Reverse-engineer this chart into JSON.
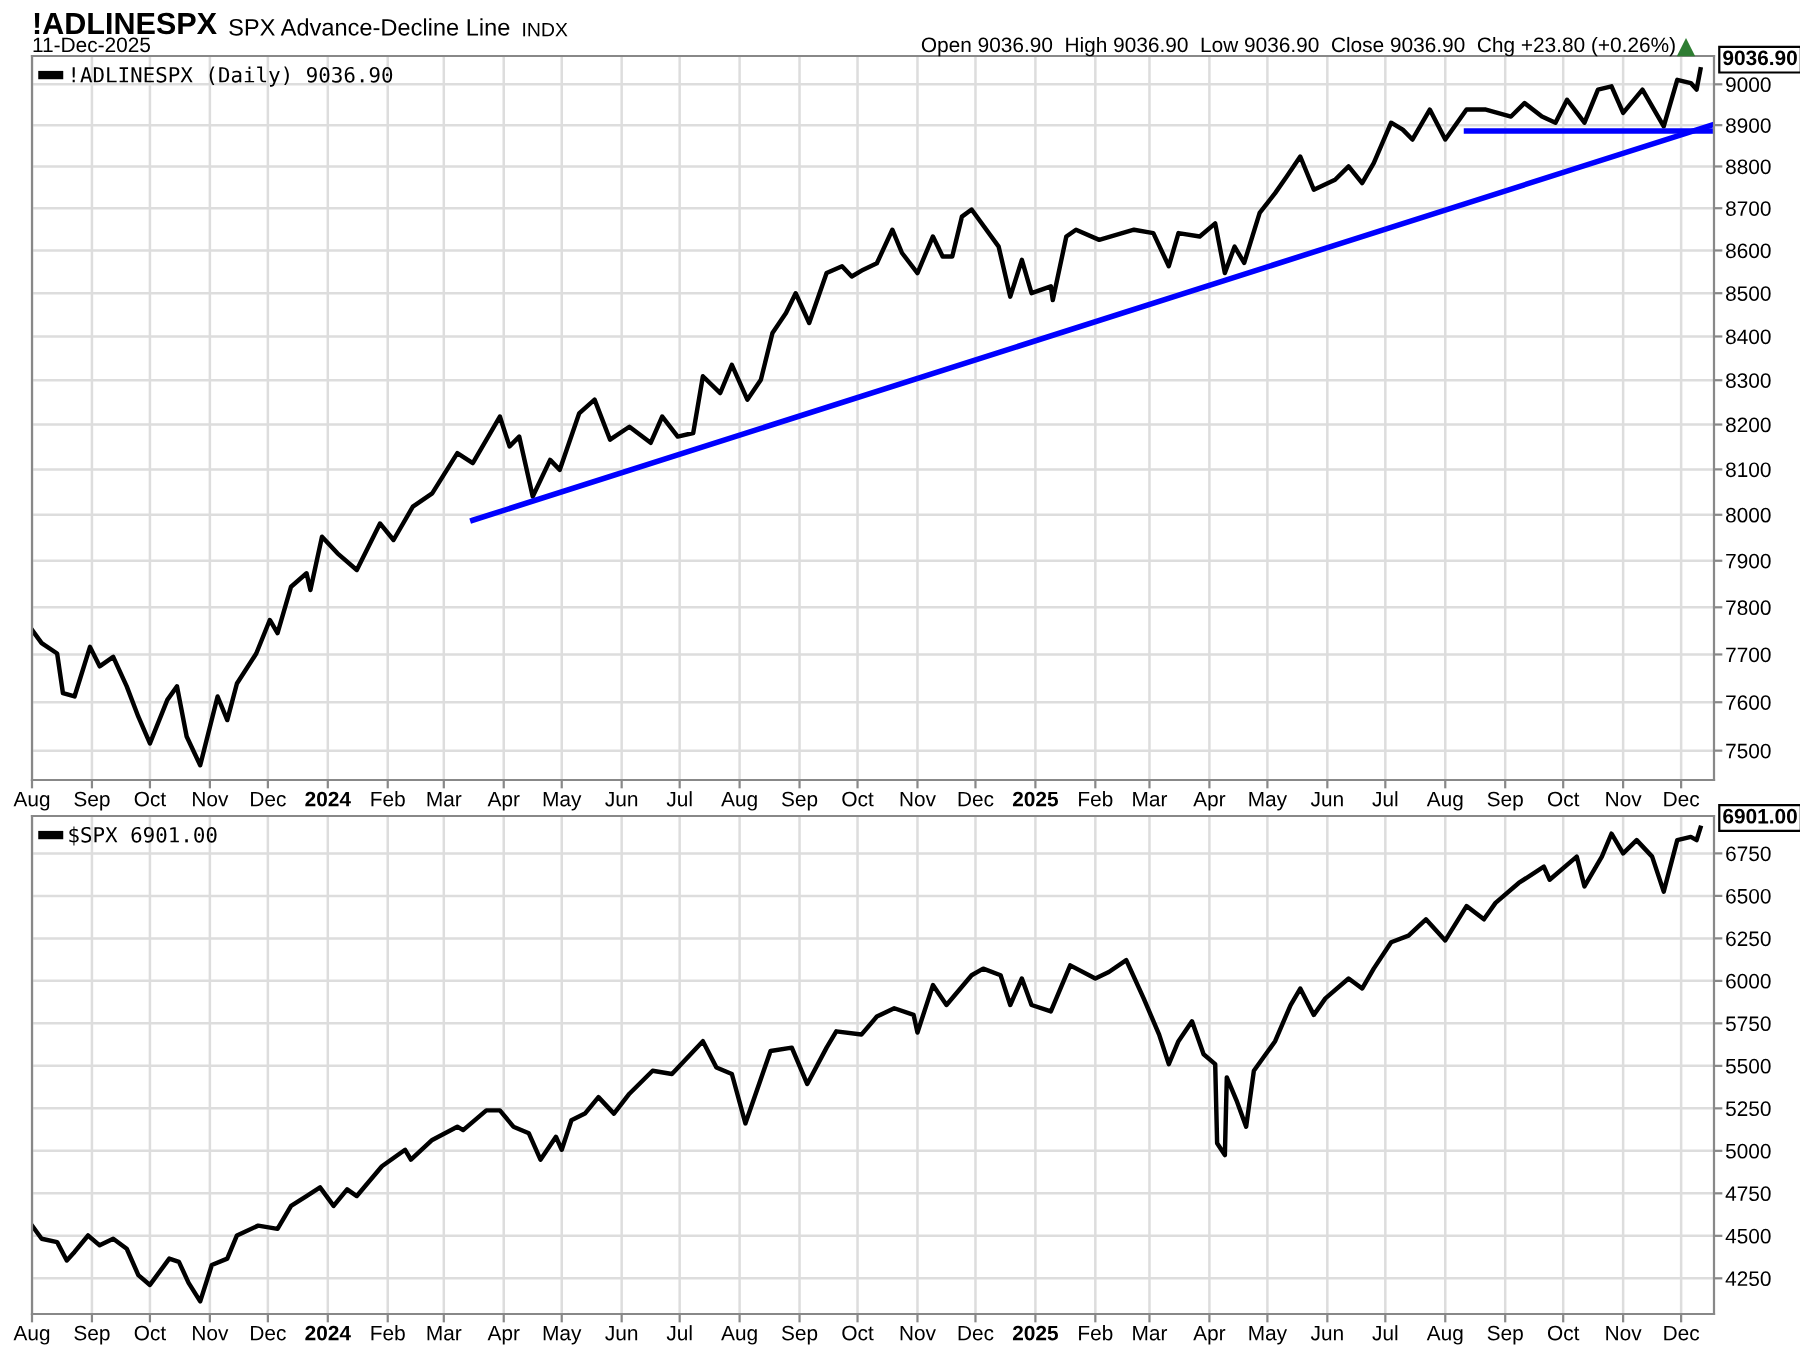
{
  "chart_data": [
    {
      "type": "line",
      "title": "!ADLINESPX",
      "subtitle": "SPX Advance-Decline Line",
      "annotations": [
        "INDX",
        "11-Dec-2025",
        "Open 9036.90  High 9036.90  Low 9036.90  Close 9036.90  Chg +23.80 (+0.26%)",
        {
          "text": "9036.90",
          "x": "2025-12-11",
          "y": 9036.9
        }
      ],
      "log": "y",
      "grid": true,
      "legend": "top left",
      "series": [
        {
          "name": "!ADLINESPX (Daily) 9036.90",
          "color": "#000000",
          "x": [
            "2023-08-01",
            "2023-08-06",
            "2023-08-14",
            "2023-08-17",
            "2023-08-23",
            "2023-08-31",
            "2023-09-05",
            "2023-09-12",
            "2023-09-19",
            "2023-09-25",
            "2023-10-01",
            "2023-10-10",
            "2023-10-15",
            "2023-10-20",
            "2023-10-27",
            "2023-11-05",
            "2023-11-10",
            "2023-11-15",
            "2023-11-25",
            "2023-12-02",
            "2023-12-06",
            "2023-12-13",
            "2023-12-21",
            "2023-12-23",
            "2023-12-29",
            "2024-01-06",
            "2024-01-16",
            "2024-01-28",
            "2024-02-04",
            "2024-02-14",
            "2024-02-24",
            "2024-03-08",
            "2024-03-16",
            "2024-03-30",
            "2024-04-04",
            "2024-04-09",
            "2024-04-16",
            "2024-04-25",
            "2024-04-30",
            "2024-05-10",
            "2024-05-18",
            "2024-05-26",
            "2024-06-05",
            "2024-06-16",
            "2024-06-22",
            "2024-06-30",
            "2024-07-08",
            "2024-07-13",
            "2024-07-22",
            "2024-07-28",
            "2024-08-05",
            "2024-08-12",
            "2024-08-18",
            "2024-08-25",
            "2024-08-30",
            "2024-09-06",
            "2024-09-15",
            "2024-09-23",
            "2024-09-28",
            "2024-10-04",
            "2024-10-11",
            "2024-10-19",
            "2024-10-24",
            "2024-11-01",
            "2024-11-09",
            "2024-11-14",
            "2024-11-19",
            "2024-11-24",
            "2024-11-29",
            "2024-12-13",
            "2024-12-19",
            "2024-12-25",
            "2024-12-30",
            "2025-01-09",
            "2025-01-10",
            "2025-01-17",
            "2025-01-22",
            "2025-02-03",
            "2025-02-21",
            "2025-03-03",
            "2025-03-11",
            "2025-03-16",
            "2025-03-27",
            "2025-04-04",
            "2025-04-09",
            "2025-04-14",
            "2025-04-19",
            "2025-04-27",
            "2025-05-05",
            "2025-05-11",
            "2025-05-18",
            "2025-05-25",
            "2025-06-05",
            "2025-06-12",
            "2025-06-19",
            "2025-06-25",
            "2025-07-04",
            "2025-07-10",
            "2025-07-15",
            "2025-07-24",
            "2025-08-01",
            "2025-08-12",
            "2025-08-22",
            "2025-09-04",
            "2025-09-11",
            "2025-09-20",
            "2025-09-27",
            "2025-10-03",
            "2025-10-12",
            "2025-10-19",
            "2025-10-26",
            "2025-11-01",
            "2025-11-11",
            "2025-11-22",
            "2025-11-29",
            "2025-12-06",
            "2025-12-09",
            "2025-12-11"
          ],
          "values": [
            7752,
            7724,
            7702,
            7619,
            7612,
            7716,
            7675,
            7695,
            7633,
            7570,
            7515,
            7605,
            7633,
            7529,
            7470,
            7612,
            7563,
            7639,
            7702,
            7773,
            7745,
            7844,
            7873,
            7837,
            7952,
            7916,
            7880,
            7981,
            7945,
            8018,
            8047,
            8136,
            8114,
            8218,
            8151,
            8173,
            8040,
            8121,
            8099,
            8225,
            8256,
            8166,
            8195,
            8159,
            8218,
            8173,
            8181,
            8309,
            8271,
            8335,
            8256,
            8301,
            8408,
            8454,
            8500,
            8431,
            8547,
            8563,
            8539,
            8555,
            8570,
            8649,
            8594,
            8547,
            8633,
            8586,
            8586,
            8680,
            8697,
            8609,
            8492,
            8578,
            8500,
            8516,
            8484,
            8633,
            8649,
            8625,
            8649,
            8641,
            8563,
            8641,
            8633,
            8664,
            8547,
            8609,
            8571,
            8689,
            8736,
            8776,
            8824,
            8744,
            8768,
            8800,
            8760,
            8808,
            8906,
            8889,
            8865,
            8938,
            8865,
            8938,
            8938,
            8921,
            8954,
            8921,
            8906,
            8962,
            8906,
            8987,
            8995,
            8930,
            8987,
            8897,
            9011,
            9003,
            8987,
            9036.9
          ]
        },
        {
          "type": "line",
          "color": "#0000ff",
          "x": [
            "2024-03-16",
            "2025-12-18"
          ],
          "values": [
            7988,
            8902
          ]
        },
        {
          "type": "line",
          "color": "#0000ff",
          "x": [
            "2025-08-12",
            "2025-12-16"
          ],
          "values": [
            8886,
            8886
          ]
        }
      ],
      "xlim": [
        "2023-08-01",
        "2025-12-18"
      ],
      "xticks": [
        {
          "value": "2023-08-01",
          "label": "Aug"
        },
        {
          "value": "2023-09-01",
          "label": "Sep"
        },
        {
          "value": "2023-10-01",
          "label": "Oct"
        },
        {
          "value": "2023-11-01",
          "label": "Nov"
        },
        {
          "value": "2023-12-01",
          "label": "Dec"
        },
        {
          "value": "2024-01-01",
          "label": "2024"
        },
        {
          "value": "2024-02-01",
          "label": "Feb"
        },
        {
          "value": "2024-03-01",
          "label": "Mar"
        },
        {
          "value": "2024-04-01",
          "label": "Apr"
        },
        {
          "value": "2024-05-01",
          "label": "May"
        },
        {
          "value": "2024-06-01",
          "label": "Jun"
        },
        {
          "value": "2024-07-01",
          "label": "Jul"
        },
        {
          "value": "2024-08-01",
          "label": "Aug"
        },
        {
          "value": "2024-09-01",
          "label": "Sep"
        },
        {
          "value": "2024-10-01",
          "label": "Oct"
        },
        {
          "value": "2024-11-01",
          "label": "Nov"
        },
        {
          "value": "2024-12-01",
          "label": "Dec"
        },
        {
          "value": "2025-01-01",
          "label": "2025"
        },
        {
          "value": "2025-02-01",
          "label": "Feb"
        },
        {
          "value": "2025-03-01",
          "label": "Mar"
        },
        {
          "value": "2025-04-01",
          "label": "Apr"
        },
        {
          "value": "2025-05-01",
          "label": "May"
        },
        {
          "value": "2025-06-01",
          "label": "Jun"
        },
        {
          "value": "2025-07-01",
          "label": "Jul"
        },
        {
          "value": "2025-08-01",
          "label": "Aug"
        },
        {
          "value": "2025-09-01",
          "label": "Sep"
        },
        {
          "value": "2025-10-01",
          "label": "Oct"
        },
        {
          "value": "2025-11-01",
          "label": "Nov"
        },
        {
          "value": "2025-12-01",
          "label": "Dec"
        }
      ],
      "ylim": [
        7440,
        9070
      ],
      "yticks": [
        7500,
        7600,
        7700,
        7800,
        7900,
        8000,
        8100,
        8200,
        8300,
        8400,
        8500,
        8600,
        8700,
        8800,
        8900,
        9000
      ]
    },
    {
      "type": "line",
      "grid": true,
      "legend": "top left",
      "annotations": [
        {
          "text": "6901.00",
          "x": "2025-12-11",
          "y": 6901
        }
      ],
      "series": [
        {
          "name": "$SPX 6901.00",
          "color": "#000000",
          "x": [
            "2023-08-01",
            "2023-08-06",
            "2023-08-14",
            "2023-08-19",
            "2023-08-23",
            "2023-08-30",
            "2023-09-05",
            "2023-09-12",
            "2023-09-19",
            "2023-09-25",
            "2023-10-01",
            "2023-10-11",
            "2023-10-16",
            "2023-10-21",
            "2023-10-27",
            "2023-11-02",
            "2023-11-10",
            "2023-11-15",
            "2023-11-26",
            "2023-12-06",
            "2023-12-13",
            "2023-12-21",
            "2023-12-28",
            "2024-01-04",
            "2024-01-11",
            "2024-01-16",
            "2024-01-29",
            "2024-02-10",
            "2024-02-13",
            "2024-02-24",
            "2024-03-08",
            "2024-03-11",
            "2024-03-23",
            "2024-03-30",
            "2024-04-06",
            "2024-04-14",
            "2024-04-20",
            "2024-04-28",
            "2024-05-01",
            "2024-05-06",
            "2024-05-13",
            "2024-05-20",
            "2024-05-28",
            "2024-06-05",
            "2024-06-17",
            "2024-06-27",
            "2024-07-13",
            "2024-07-20",
            "2024-07-28",
            "2024-08-04",
            "2024-08-17",
            "2024-08-28",
            "2024-09-05",
            "2024-09-15",
            "2024-09-20",
            "2024-10-03",
            "2024-10-11",
            "2024-10-20",
            "2024-10-30",
            "2024-11-01",
            "2024-11-09",
            "2024-11-16",
            "2024-11-29",
            "2024-12-05",
            "2024-12-14",
            "2024-12-19",
            "2024-12-25",
            "2024-12-30",
            "2025-01-09",
            "2025-01-19",
            "2025-02-01",
            "2025-02-08",
            "2025-02-17",
            "2025-02-26",
            "2025-03-06",
            "2025-03-11",
            "2025-03-16",
            "2025-03-23",
            "2025-03-29",
            "2025-04-04",
            "2025-04-05",
            "2025-04-09",
            "2025-04-10",
            "2025-04-15",
            "2025-04-20",
            "2025-04-24",
            "2025-05-05",
            "2025-05-13",
            "2025-05-18",
            "2025-05-25",
            "2025-05-31",
            "2025-06-12",
            "2025-06-19",
            "2025-06-25",
            "2025-07-04",
            "2025-07-13",
            "2025-07-22",
            "2025-08-01",
            "2025-08-12",
            "2025-08-21",
            "2025-08-27",
            "2025-09-08",
            "2025-09-21",
            "2025-09-24",
            "2025-10-08",
            "2025-10-12",
            "2025-10-21",
            "2025-10-26",
            "2025-11-01",
            "2025-11-08",
            "2025-11-16",
            "2025-11-22",
            "2025-11-29",
            "2025-12-06",
            "2025-12-09",
            "2025-12-11"
          ],
          "values": [
            4560,
            4483,
            4463,
            4355,
            4405,
            4502,
            4444,
            4483,
            4424,
            4269,
            4211,
            4366,
            4347,
            4223,
            4114,
            4328,
            4366,
            4502,
            4560,
            4541,
            4676,
            4734,
            4785,
            4676,
            4773,
            4734,
            4909,
            5006,
            4948,
            5064,
            5142,
            5122,
            5238,
            5238,
            5142,
            5103,
            4948,
            5083,
            5006,
            5180,
            5219,
            5316,
            5219,
            5336,
            5471,
            5452,
            5645,
            5490,
            5452,
            5161,
            5587,
            5607,
            5393,
            5607,
            5703,
            5684,
            5790,
            5839,
            5800,
            5696,
            5975,
            5858,
            6033,
            6072,
            6033,
            5858,
            6014,
            5858,
            5820,
            6091,
            6014,
            6052,
            6122,
            5897,
            5684,
            5510,
            5645,
            5762,
            5568,
            5510,
            5045,
            4975,
            5432,
            5297,
            5142,
            5471,
            5645,
            5858,
            5955,
            5800,
            5897,
            6014,
            5955,
            6072,
            6227,
            6266,
            6362,
            6238,
            6440,
            6362,
            6459,
            6576,
            6672,
            6595,
            6731,
            6556,
            6731,
            6866,
            6750,
            6828,
            6731,
            6525,
            6828,
            6847,
            6828,
            6901
          ]
        }
      ],
      "xlim": [
        "2023-08-01",
        "2025-12-18"
      ],
      "xticks": [
        {
          "value": "2023-08-01",
          "label": "Aug"
        },
        {
          "value": "2023-09-01",
          "label": "Sep"
        },
        {
          "value": "2023-10-01",
          "label": "Oct"
        },
        {
          "value": "2023-11-01",
          "label": "Nov"
        },
        {
          "value": "2023-12-01",
          "label": "Dec"
        },
        {
          "value": "2024-01-01",
          "label": "2024"
        },
        {
          "value": "2024-02-01",
          "label": "Feb"
        },
        {
          "value": "2024-03-01",
          "label": "Mar"
        },
        {
          "value": "2024-04-01",
          "label": "Apr"
        },
        {
          "value": "2024-05-01",
          "label": "May"
        },
        {
          "value": "2024-06-01",
          "label": "Jun"
        },
        {
          "value": "2024-07-01",
          "label": "Jul"
        },
        {
          "value": "2024-08-01",
          "label": "Aug"
        },
        {
          "value": "2024-09-01",
          "label": "Sep"
        },
        {
          "value": "2024-10-01",
          "label": "Oct"
        },
        {
          "value": "2024-11-01",
          "label": "Nov"
        },
        {
          "value": "2024-12-01",
          "label": "Dec"
        },
        {
          "value": "2025-01-01",
          "label": "2025"
        },
        {
          "value": "2025-02-01",
          "label": "Feb"
        },
        {
          "value": "2025-03-01",
          "label": "Mar"
        },
        {
          "value": "2025-04-01",
          "label": "Apr"
        },
        {
          "value": "2025-05-01",
          "label": "May"
        },
        {
          "value": "2025-06-01",
          "label": "Jun"
        },
        {
          "value": "2025-07-01",
          "label": "Jul"
        },
        {
          "value": "2025-08-01",
          "label": "Aug"
        },
        {
          "value": "2025-09-01",
          "label": "Sep"
        },
        {
          "value": "2025-10-01",
          "label": "Oct"
        },
        {
          "value": "2025-11-01",
          "label": "Nov"
        },
        {
          "value": "2025-12-01",
          "label": "Dec"
        }
      ],
      "ylim": [
        4040,
        6970
      ],
      "yticks": [
        4250,
        4500,
        4750,
        5000,
        5250,
        5500,
        5750,
        6000,
        6250,
        6500,
        6750
      ]
    }
  ]
}
